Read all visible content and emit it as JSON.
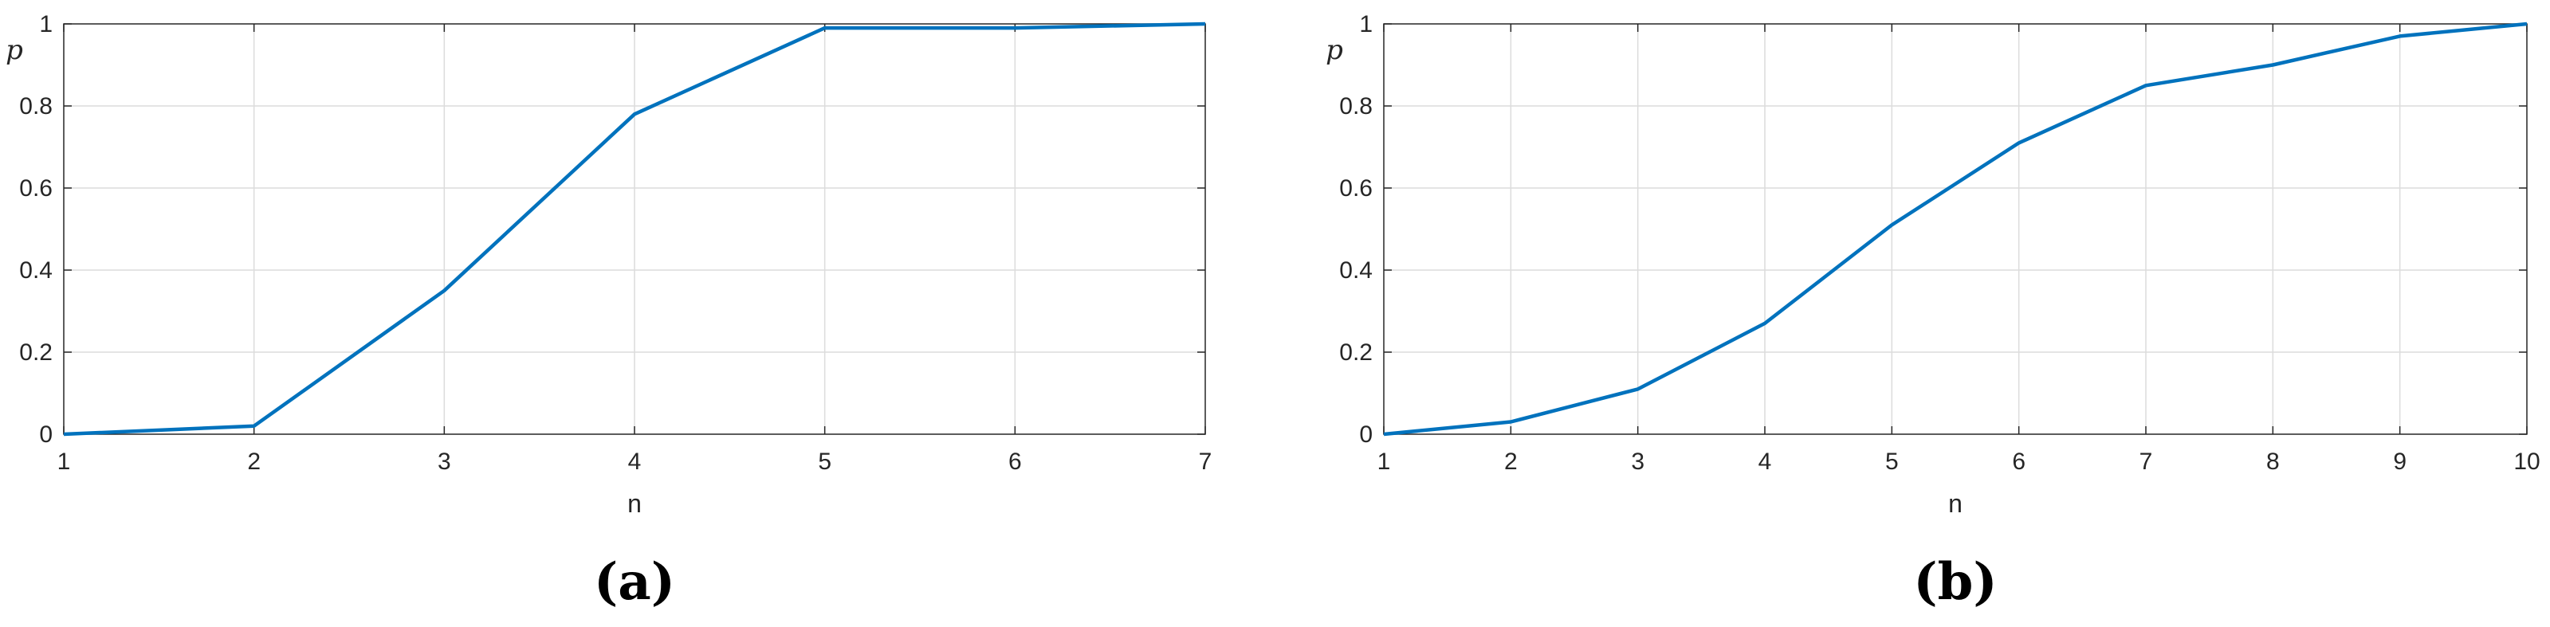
{
  "chart_data": [
    {
      "panel": "(a)",
      "type": "line",
      "xlabel": "n",
      "ylabel": "p",
      "xlim": [
        1,
        7
      ],
      "ylim": [
        0,
        1
      ],
      "xticks": [
        1,
        2,
        3,
        4,
        5,
        6,
        7
      ],
      "yticks": [
        0,
        0.2,
        0.4,
        0.6,
        0.8,
        1
      ],
      "grid": true,
      "color": "#0072BD",
      "x": [
        1,
        2,
        3,
        4,
        5,
        6,
        7
      ],
      "y": [
        0,
        0.02,
        0.35,
        0.78,
        0.99,
        0.99,
        1.0
      ]
    },
    {
      "panel": "(b)",
      "type": "line",
      "xlabel": "n",
      "ylabel": "p",
      "xlim": [
        1,
        10
      ],
      "ylim": [
        0,
        1
      ],
      "xticks": [
        1,
        2,
        3,
        4,
        5,
        6,
        7,
        8,
        9,
        10
      ],
      "yticks": [
        0,
        0.2,
        0.4,
        0.6,
        0.8,
        1
      ],
      "grid": true,
      "color": "#0072BD",
      "x": [
        1,
        2,
        3,
        4,
        5,
        6,
        7,
        8,
        9,
        10
      ],
      "y": [
        0,
        0.03,
        0.11,
        0.27,
        0.51,
        0.71,
        0.85,
        0.9,
        0.97,
        1.0
      ]
    }
  ]
}
